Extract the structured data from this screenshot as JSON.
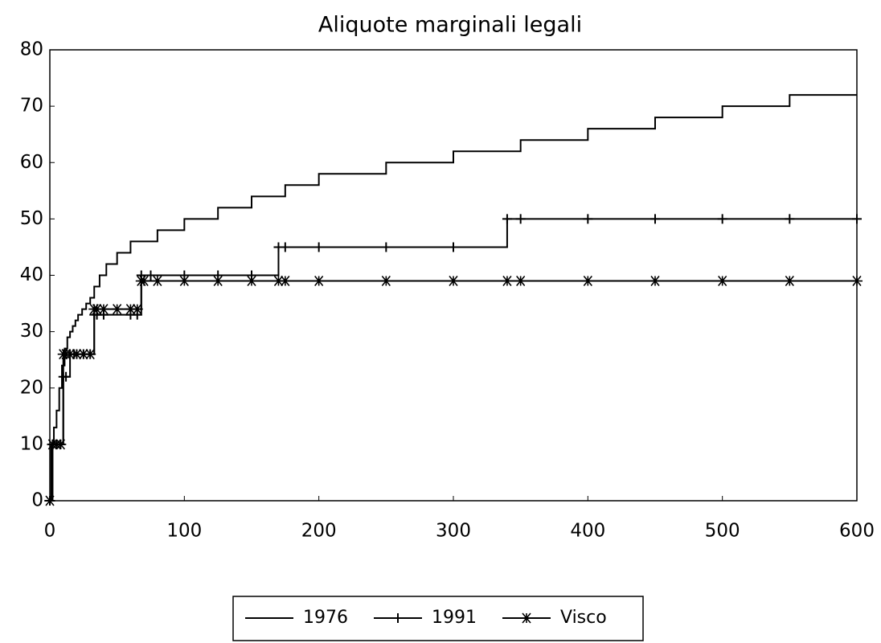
{
  "chart_data": {
    "type": "line",
    "step": true,
    "title": "Aliquote marginali legali",
    "xlim": [
      0,
      600
    ],
    "xticks": [
      0,
      100,
      200,
      300,
      400,
      500,
      600
    ],
    "ylim": [
      0,
      80
    ],
    "yticks": [
      0,
      10,
      20,
      30,
      40,
      50,
      60,
      70,
      80
    ],
    "grid": false,
    "legend": "bottom",
    "series": [
      {
        "name": "1976",
        "color": "#000000",
        "marker": "none",
        "x": [
          0,
          1,
          3,
          5,
          7,
          9,
          11,
          13,
          15,
          17,
          19,
          21,
          24,
          27,
          30,
          33,
          37,
          42,
          50,
          60,
          80,
          100,
          125,
          150,
          175,
          200,
          250,
          300,
          350,
          400,
          450,
          500,
          550,
          600
        ],
        "values": [
          0,
          10,
          13,
          16,
          20,
          24,
          27,
          29,
          30,
          31,
          32,
          33,
          34,
          35,
          36,
          38,
          40,
          42,
          44,
          46,
          48,
          50,
          52,
          54,
          56,
          58,
          60,
          62,
          64,
          66,
          68,
          70,
          72,
          72
        ]
      },
      {
        "name": "1991",
        "color": "#000000",
        "marker": "plus",
        "x": [
          0,
          2,
          5,
          8,
          10,
          12,
          15,
          18,
          20,
          25,
          30,
          33,
          35,
          40,
          60,
          65,
          68,
          75,
          100,
          125,
          150,
          170,
          175,
          200,
          250,
          300,
          340,
          350,
          400,
          450,
          500,
          550,
          600
        ],
        "values": [
          0,
          10,
          10,
          10,
          22,
          22,
          26,
          26,
          26,
          26,
          26,
          33,
          33,
          33,
          33,
          33,
          40,
          40,
          40,
          40,
          40,
          45,
          45,
          45,
          45,
          45,
          50,
          50,
          50,
          50,
          50,
          50,
          50
        ]
      },
      {
        "name": "Visco",
        "color": "#000000",
        "marker": "star",
        "x": [
          0,
          2,
          5,
          8,
          10,
          12,
          15,
          20,
          25,
          30,
          33,
          35,
          40,
          50,
          60,
          65,
          68,
          70,
          80,
          100,
          125,
          150,
          170,
          175,
          200,
          250,
          300,
          340,
          350,
          400,
          450,
          500,
          550,
          600
        ],
        "values": [
          0,
          10,
          10,
          10,
          26,
          26,
          26,
          26,
          26,
          26,
          34,
          34,
          34,
          34,
          34,
          34,
          39,
          39,
          39,
          39,
          39,
          39,
          39,
          39,
          39,
          39,
          39,
          39,
          39,
          39,
          39,
          39,
          39,
          39
        ]
      }
    ]
  }
}
